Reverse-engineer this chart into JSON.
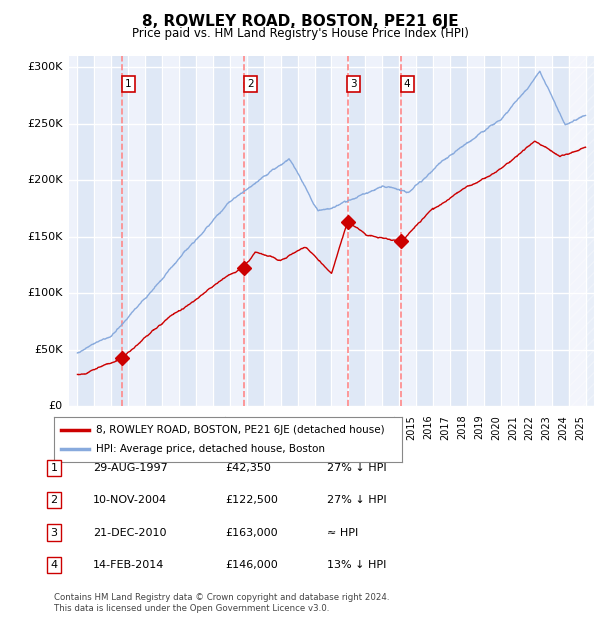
{
  "title": "8, ROWLEY ROAD, BOSTON, PE21 6JE",
  "subtitle": "Price paid vs. HM Land Registry's House Price Index (HPI)",
  "footer": "Contains HM Land Registry data © Crown copyright and database right 2024.\nThis data is licensed under the Open Government Licence v3.0.",
  "legend_line1": "8, ROWLEY ROAD, BOSTON, PE21 6JE (detached house)",
  "legend_line2": "HPI: Average price, detached house, Boston",
  "sales": [
    {
      "num": 1,
      "date_label": "29-AUG-1997",
      "date_x": 1997.65,
      "price": 42350,
      "pct": "27% ↓ HPI"
    },
    {
      "num": 2,
      "date_label": "10-NOV-2004",
      "date_x": 2004.85,
      "price": 122500,
      "pct": "27% ↓ HPI"
    },
    {
      "num": 3,
      "date_label": "21-DEC-2010",
      "date_x": 2010.96,
      "price": 163000,
      "pct": "≈ HPI"
    },
    {
      "num": 4,
      "date_label": "14-FEB-2014",
      "date_x": 2014.12,
      "price": 146000,
      "pct": "13% ↓ HPI"
    }
  ],
  "ylim": [
    0,
    310000
  ],
  "xlim": [
    1994.5,
    2025.5
  ],
  "yticks": [
    0,
    50000,
    100000,
    150000,
    200000,
    250000,
    300000
  ],
  "ytick_labels": [
    "£0",
    "£50K",
    "£100K",
    "£150K",
    "£200K",
    "£250K",
    "£300K"
  ],
  "xticks": [
    1995,
    1996,
    1997,
    1998,
    1999,
    2000,
    2001,
    2002,
    2003,
    2004,
    2005,
    2006,
    2007,
    2008,
    2009,
    2010,
    2011,
    2012,
    2013,
    2014,
    2015,
    2016,
    2017,
    2018,
    2019,
    2020,
    2021,
    2022,
    2023,
    2024,
    2025
  ],
  "bg_color": "#eef2fb",
  "sale_color": "#cc0000",
  "hpi_color": "#88aadd",
  "vline_color": "#ff8888",
  "grid_color": "#ffffff",
  "alt_col_color": "#dce6f5"
}
